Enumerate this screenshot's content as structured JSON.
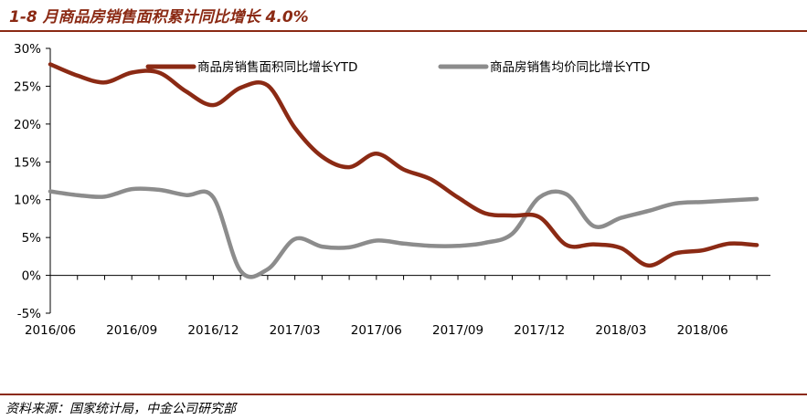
{
  "title": "1-8 月商品房销售面积累计同比增长 4.0%",
  "source": "资料来源：国家统计局，中金公司研究部",
  "chart_data": {
    "type": "line",
    "title": "1-8 月商品房销售面积累计同比增长 4.0%",
    "xlabel": "",
    "ylabel": "",
    "x_tick_labels": [
      "2016/06",
      "2016/09",
      "2016/12",
      "2017/03",
      "2017/06",
      "2017/09",
      "2017/12",
      "2018/03",
      "2018/06"
    ],
    "y_tick_labels": [
      "30%",
      "25%",
      "20%",
      "15%",
      "10%",
      "5%",
      "0%",
      "-5%"
    ],
    "ylim": [
      -5,
      30
    ],
    "legend_position": "top",
    "grid": false,
    "x": [
      "2016/06",
      "2016/07",
      "2016/08",
      "2016/09",
      "2016/10",
      "2016/11",
      "2016/12",
      "2017/01",
      "2017/02",
      "2017/03",
      "2017/04",
      "2017/05",
      "2017/06",
      "2017/07",
      "2017/08",
      "2017/09",
      "2017/10",
      "2017/11",
      "2017/12",
      "2018/01",
      "2018/02",
      "2018/03",
      "2018/04",
      "2018/05",
      "2018/06",
      "2018/07",
      "2018/08"
    ],
    "series": [
      {
        "name": "商品房销售面积同比增长YTD",
        "color": "#8b2a14",
        "values": [
          27.9,
          26.4,
          25.5,
          26.8,
          26.8,
          24.3,
          22.5,
          24.8,
          25.1,
          19.5,
          15.7,
          14.3,
          16.1,
          14.0,
          12.7,
          10.3,
          8.2,
          7.9,
          7.7,
          4.0,
          4.1,
          3.6,
          1.3,
          2.9,
          3.3,
          4.2,
          4.0
        ]
      },
      {
        "name": "商品房销售均价同比增长YTD",
        "color": "#8c8c8c",
        "values": [
          11.1,
          10.6,
          10.4,
          11.4,
          11.3,
          10.6,
          10.3,
          0.6,
          0.8,
          4.8,
          3.8,
          3.7,
          4.6,
          4.2,
          3.9,
          3.9,
          4.3,
          5.5,
          10.3,
          10.7,
          6.5,
          7.6,
          8.5,
          9.5,
          9.7,
          9.9,
          10.1
        ]
      }
    ]
  }
}
